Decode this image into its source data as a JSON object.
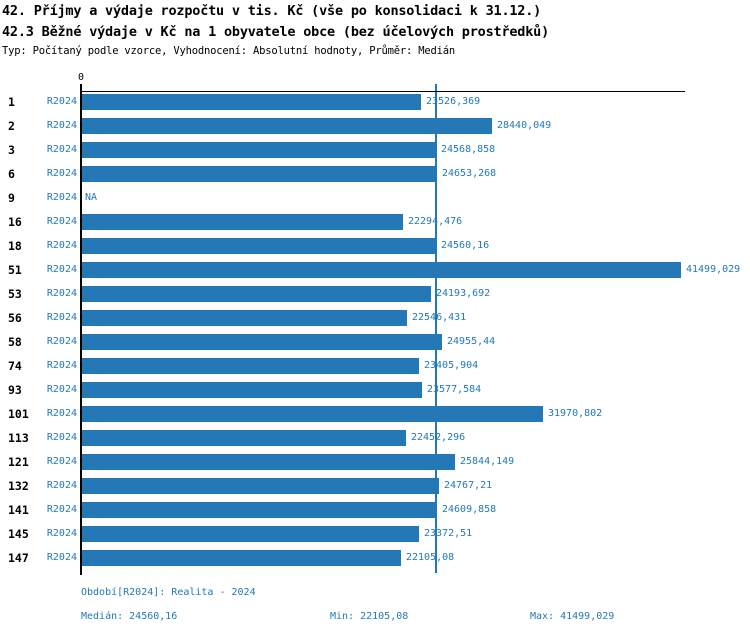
{
  "header": {
    "title_line1": "42. Příjmy a výdaje rozpočtu v tis. Kč (vše po konsolidaci k 31.12.)",
    "title_line2": "42.3 Běžné výdaje v Kč na 1 obyvatele obce (bez účelových prostředků)",
    "subtitle": "Typ: Počítaný podle vzorce, Vyhodnocení: Absolutní hodnoty, Průměr: Medián"
  },
  "colors": {
    "accent_blue": "#2378b5",
    "axis_black": "#000000"
  },
  "chart_data": {
    "type": "bar",
    "orientation": "horizontal",
    "axis_zero_label": "0",
    "series_name": "R2024",
    "categories": [
      "1",
      "2",
      "3",
      "6",
      "9",
      "16",
      "18",
      "51",
      "53",
      "56",
      "58",
      "74",
      "93",
      "101",
      "113",
      "121",
      "132",
      "141",
      "145",
      "147"
    ],
    "values": [
      23526.369,
      28440.049,
      24568.858,
      24653.268,
      null,
      22294.476,
      24560.16,
      41499.029,
      24193.692,
      22546.431,
      24955.44,
      23405.904,
      23577.584,
      31970.802,
      22452.296,
      25844.149,
      24767.21,
      24609.858,
      23372.51,
      22105.08
    ],
    "value_labels": [
      "23526,369",
      "28440,049",
      "24568,858",
      "24653,268",
      "NA",
      "22294,476",
      "24560,16",
      "41499,029",
      "24193,692",
      "22546,431",
      "24955,44",
      "23405,904",
      "23577,584",
      "31970,802",
      "22452,296",
      "25844,149",
      "24767,21",
      "24609,858",
      "23372,51",
      "22105,08"
    ],
    "median_value": 24560.16,
    "xlim": [
      0,
      41900
    ],
    "grid": false,
    "legend_position": "none"
  },
  "footer": {
    "period": "Období[R2024]: Realita - 2024",
    "median": "Medián: 24560,16",
    "min": "Min: 22105,08",
    "max": "Max: 41499,029"
  }
}
